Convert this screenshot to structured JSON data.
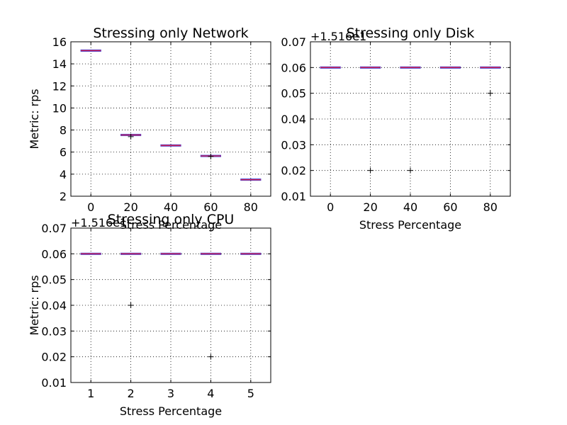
{
  "chart_data": [
    {
      "type": "box",
      "title": "Stressing only Network",
      "xlabel": "Stress Percentage",
      "ylabel": "Metric: rps",
      "offset_text": "",
      "categories": [
        "0",
        "20",
        "40",
        "60",
        "80"
      ],
      "ylim": [
        2,
        16
      ],
      "yticks": [
        "2",
        "4",
        "6",
        "8",
        "10",
        "12",
        "14",
        "16"
      ],
      "grid": true,
      "boxes": [
        {
          "category": "0",
          "median": 15.2,
          "fliers": []
        },
        {
          "category": "20",
          "median": 7.55,
          "fliers": [
            7.4
          ]
        },
        {
          "category": "40",
          "median": 6.6,
          "fliers": []
        },
        {
          "category": "60",
          "median": 5.65,
          "fliers": [
            5.6
          ]
        },
        {
          "category": "80",
          "median": 3.5,
          "fliers": []
        }
      ],
      "colors": {
        "box": "#3b3bd6",
        "median": "#d6244d"
      }
    },
    {
      "type": "box",
      "title": "Stressing only Disk",
      "xlabel": "Stress Percentage",
      "ylabel": "",
      "offset_text": "+1.516e1",
      "categories": [
        "0",
        "20",
        "40",
        "60",
        "80"
      ],
      "ylim": [
        0.01,
        0.07
      ],
      "yticks": [
        "0.01",
        "0.02",
        "0.03",
        "0.04",
        "0.05",
        "0.06",
        "0.07"
      ],
      "grid": true,
      "boxes": [
        {
          "category": "0",
          "median": 0.06,
          "fliers": []
        },
        {
          "category": "20",
          "median": 0.06,
          "fliers": [
            0.02
          ]
        },
        {
          "category": "40",
          "median": 0.06,
          "fliers": [
            0.02
          ]
        },
        {
          "category": "60",
          "median": 0.06,
          "fliers": []
        },
        {
          "category": "80",
          "median": 0.06,
          "fliers": [
            0.05
          ]
        }
      ],
      "colors": {
        "box": "#3b3bd6",
        "median": "#d6244d"
      }
    },
    {
      "type": "box",
      "title": "Stressing only CPU",
      "xlabel": "Stress Percentage",
      "ylabel": "Metric: rps",
      "offset_text": "+1.516e1",
      "categories": [
        "1",
        "2",
        "3",
        "4",
        "5"
      ],
      "ylim": [
        0.01,
        0.07
      ],
      "yticks": [
        "0.01",
        "0.02",
        "0.03",
        "0.04",
        "0.05",
        "0.06",
        "0.07"
      ],
      "grid": true,
      "boxes": [
        {
          "category": "1",
          "median": 0.06,
          "fliers": []
        },
        {
          "category": "2",
          "median": 0.06,
          "fliers": [
            0.04
          ]
        },
        {
          "category": "3",
          "median": 0.06,
          "fliers": []
        },
        {
          "category": "4",
          "median": 0.06,
          "fliers": [
            0.02
          ]
        },
        {
          "category": "5",
          "median": 0.06,
          "fliers": []
        }
      ],
      "colors": {
        "box": "#3b3bd6",
        "median": "#d6244d"
      }
    }
  ]
}
